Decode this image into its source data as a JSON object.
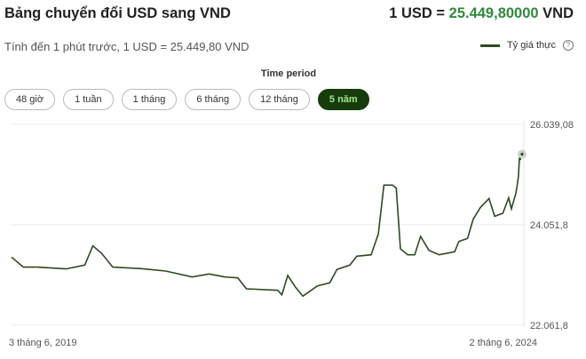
{
  "header": {
    "title": "Bảng chuyển đổi USD sang VND",
    "rate_prefix": "1 USD = ",
    "rate_value": "25.449,80000",
    "rate_suffix": " VND"
  },
  "subtitle": "Tính đến 1 phút trước, 1 USD = 25.449,80 VND",
  "legend": {
    "label": "Tỷ giá thực",
    "help_icon": "question-circle-icon",
    "help_glyph": "?"
  },
  "time_period": {
    "label": "Time period",
    "options": [
      "48 giờ",
      "1 tuần",
      "1 tháng",
      "6 tháng",
      "12 tháng",
      "5 năm"
    ],
    "selected": "5 năm"
  },
  "colors": {
    "line": "#2d4a1e",
    "accent": "#2f8a3c",
    "selected_bg": "#173c0c",
    "selected_text": "#a6e38a"
  },
  "chart_data": {
    "type": "line",
    "x_labels": [
      "3 tháng 6, 2019",
      "2 tháng 6, 2024"
    ],
    "y_ticks": [
      {
        "value": 26039.08,
        "label": "26.039,08"
      },
      {
        "value": 24051.8,
        "label": "24.051,8"
      },
      {
        "value": 22061.8,
        "label": "22.061,8"
      }
    ],
    "xlim": [
      "2019-06-03",
      "2024-06-02"
    ],
    "ylim": [
      22061.8,
      26039.08
    ],
    "grid": true,
    "legend": "top-right",
    "series": [
      {
        "name": "Tỷ giá thực",
        "points": [
          [
            "2019-06-03",
            23411
          ],
          [
            "2019-07-15",
            23212
          ],
          [
            "2019-09-02",
            23212
          ],
          [
            "2019-12-15",
            23177
          ],
          [
            "2020-02-20",
            23253
          ],
          [
            "2020-03-20",
            23634
          ],
          [
            "2020-04-20",
            23487
          ],
          [
            "2020-05-30",
            23212
          ],
          [
            "2020-09-10",
            23182
          ],
          [
            "2020-12-05",
            23135
          ],
          [
            "2021-03-10",
            23018
          ],
          [
            "2021-05-10",
            23077
          ],
          [
            "2021-07-05",
            23018
          ],
          [
            "2021-08-20",
            23000
          ],
          [
            "2021-09-20",
            22783
          ],
          [
            "2022-01-10",
            22754
          ],
          [
            "2022-01-25",
            22666
          ],
          [
            "2022-02-15",
            23047
          ],
          [
            "2022-03-15",
            22813
          ],
          [
            "2022-04-10",
            22637
          ],
          [
            "2022-06-01",
            22842
          ],
          [
            "2022-07-15",
            22901
          ],
          [
            "2022-08-10",
            23165
          ],
          [
            "2022-09-25",
            23253
          ],
          [
            "2022-10-20",
            23429
          ],
          [
            "2022-12-10",
            23458
          ],
          [
            "2023-01-05",
            23869
          ],
          [
            "2023-01-25",
            24837
          ],
          [
            "2023-02-25",
            24837
          ],
          [
            "2023-03-10",
            24778
          ],
          [
            "2023-03-25",
            23575
          ],
          [
            "2023-04-20",
            23458
          ],
          [
            "2023-05-15",
            23458
          ],
          [
            "2023-06-05",
            23822
          ],
          [
            "2023-07-05",
            23546
          ],
          [
            "2023-08-10",
            23458
          ],
          [
            "2023-10-05",
            23517
          ],
          [
            "2023-10-20",
            23722
          ],
          [
            "2023-11-20",
            23781
          ],
          [
            "2023-12-10",
            24162
          ],
          [
            "2024-01-05",
            24396
          ],
          [
            "2024-02-05",
            24572
          ],
          [
            "2024-02-25",
            24220
          ],
          [
            "2024-03-25",
            24279
          ],
          [
            "2024-04-15",
            24584
          ],
          [
            "2024-04-25",
            24367
          ],
          [
            "2024-05-10",
            24661
          ],
          [
            "2024-05-15",
            24807
          ],
          [
            "2024-05-20",
            25012
          ],
          [
            "2024-05-24",
            25423
          ],
          [
            "2024-05-27",
            25335
          ],
          [
            "2024-05-30",
            25452
          ],
          [
            "2024-06-02",
            25450
          ]
        ]
      }
    ]
  }
}
